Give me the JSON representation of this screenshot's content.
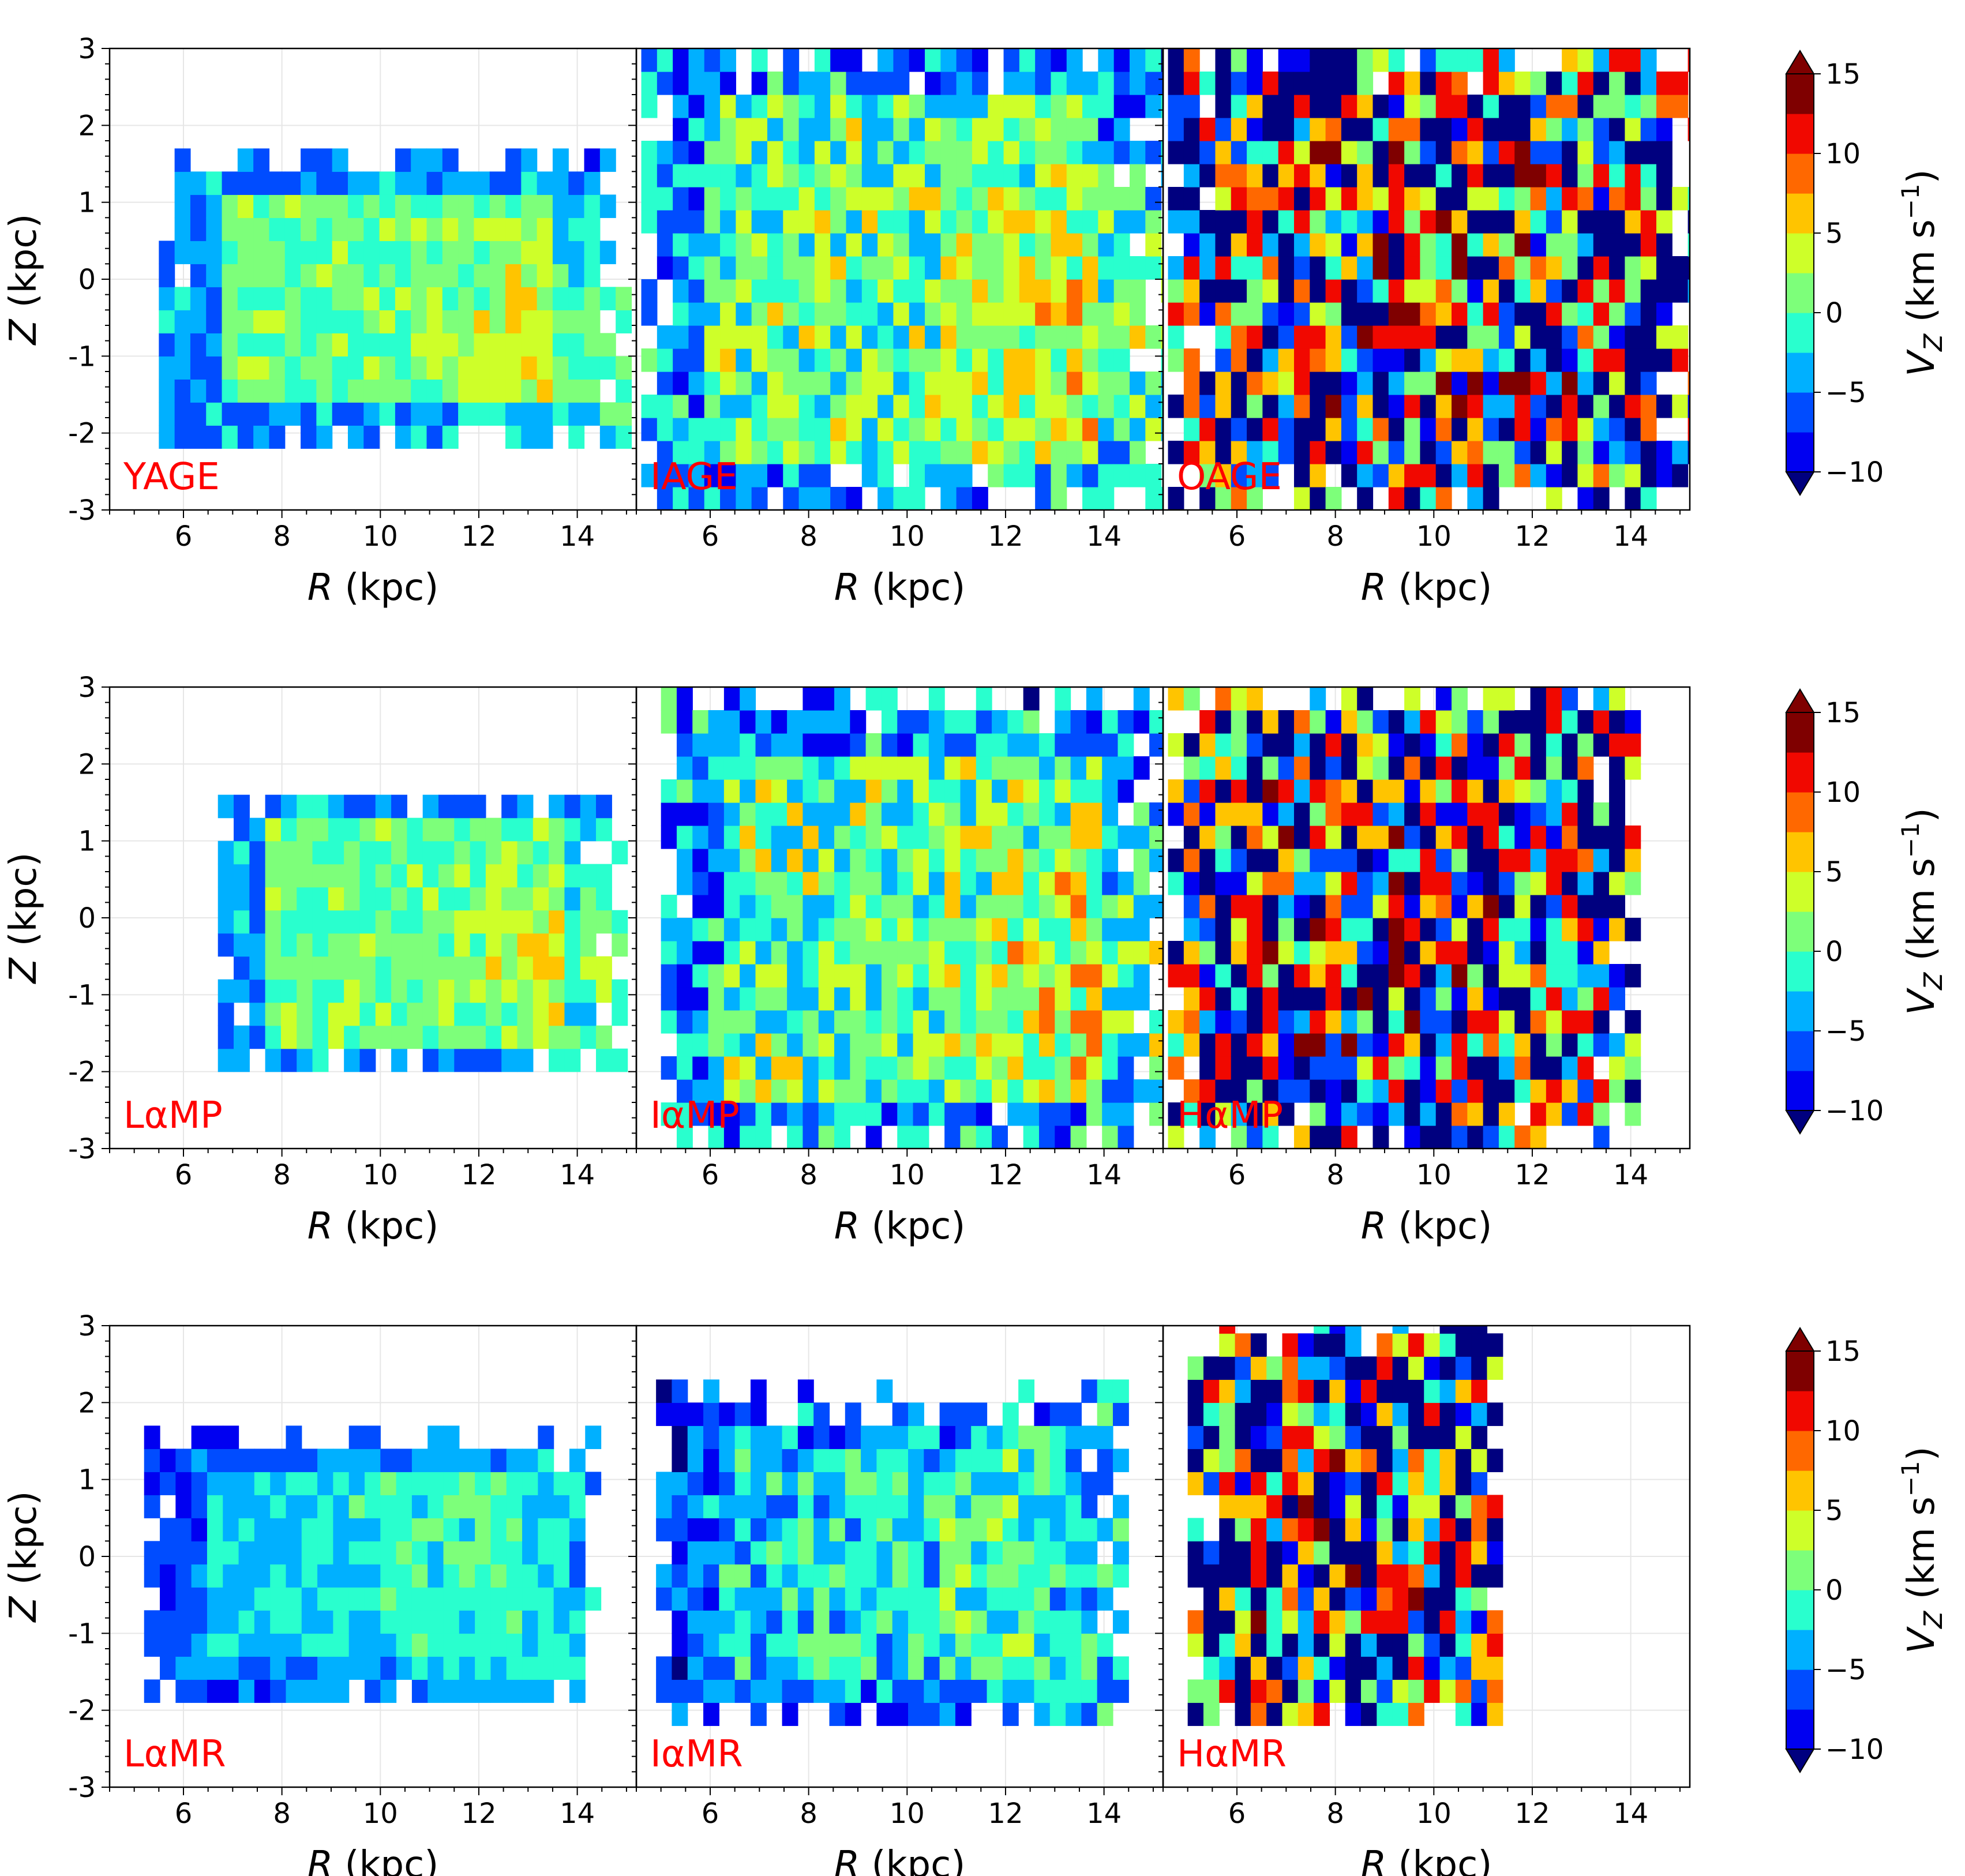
{
  "figure": {
    "colormap": "jet",
    "colorbar": {
      "label_text": "V",
      "label_subscript": "Z",
      "label_units": "(km s",
      "label_units_exp": "−1",
      "label_close": ")",
      "ticks": [
        "15",
        "10",
        "5",
        "0",
        "−5",
        "−10"
      ],
      "range": [
        -10,
        15
      ],
      "levels": 10,
      "extend": "both",
      "colors": [
        "#00007f",
        "#0000f1",
        "#004cff",
        "#00b0ff",
        "#29ffce",
        "#7dff7a",
        "#ceff29",
        "#ffc400",
        "#ff6800",
        "#f10800",
        "#7f0000"
      ]
    },
    "rows": [
      {
        "panels": [
          {
            "label": "YAGE",
            "label_color": "#ff0000"
          },
          {
            "label": "IAGE",
            "label_color": "#ff0000"
          },
          {
            "label": "OAGE",
            "label_color": "#ff0000"
          }
        ]
      },
      {
        "panels": [
          {
            "label": "LαMP",
            "label_color": "#ff0000"
          },
          {
            "label": "IαMP",
            "label_color": "#ff0000"
          },
          {
            "label": "HαMP",
            "label_color": "#ff0000"
          }
        ]
      },
      {
        "panels": [
          {
            "label": "LαMR",
            "label_color": "#ff0000"
          },
          {
            "label": "IαMR",
            "label_color": "#ff0000"
          },
          {
            "label": "HαMR",
            "label_color": "#ff0000"
          }
        ]
      }
    ]
  },
  "chart_data": {
    "type": "heatmap",
    "title": "",
    "xlabel_var": "R",
    "xlabel_units": "(kpc)",
    "ylabel_var": "Z",
    "ylabel_units": "(kpc)",
    "xlim": [
      4.5,
      15.2
    ],
    "ylim": [
      -3,
      3
    ],
    "xticks": [
      "6",
      "8",
      "10",
      "12",
      "14"
    ],
    "yticks": [
      "3",
      "2",
      "1",
      "0",
      "-1",
      "-2",
      "-3"
    ],
    "zlabel": "V_Z (km s^-1)",
    "zlim": [
      -10,
      15
    ],
    "grid": true,
    "panels": [
      {
        "name": "YAGE",
        "r_range": [
          5.5,
          14.8
        ],
        "z_range": [
          -2.2,
          1.6
        ],
        "pattern": "gradient_positive_outer",
        "noise": 0.35
      },
      {
        "name": "IAGE",
        "r_range": [
          4.6,
          15.2
        ],
        "z_range": [
          -3.0,
          3.0
        ],
        "pattern": "gradient_positive_outer",
        "noise": 0.6
      },
      {
        "name": "OAGE",
        "r_range": [
          4.6,
          15.2
        ],
        "z_range": [
          -3.0,
          3.0
        ],
        "pattern": "noisy",
        "noise": 1.0
      },
      {
        "name": "LαMP",
        "r_range": [
          6.7,
          14.8
        ],
        "z_range": [
          -2.0,
          1.6
        ],
        "pattern": "gradient_positive_outer",
        "noise": 0.35
      },
      {
        "name": "IαMP",
        "r_range": [
          5.0,
          15.2
        ],
        "z_range": [
          -3.0,
          2.8
        ],
        "pattern": "gradient_positive_outer",
        "noise": 0.65
      },
      {
        "name": "HαMP",
        "r_range": [
          4.6,
          14.0
        ],
        "z_range": [
          -3.0,
          3.0
        ],
        "pattern": "noisy",
        "noise": 1.0
      },
      {
        "name": "LαMR",
        "r_range": [
          5.2,
          14.2
        ],
        "z_range": [
          -1.9,
          1.5
        ],
        "pattern": "flat_negative",
        "noise": 0.3
      },
      {
        "name": "IαMR",
        "r_range": [
          4.9,
          14.4
        ],
        "z_range": [
          -2.2,
          2.0
        ],
        "pattern": "flat_negative",
        "noise": 0.6
      },
      {
        "name": "HαMR",
        "r_range": [
          5.0,
          11.4
        ],
        "z_range": [
          -2.2,
          3.0
        ],
        "pattern": "noisy",
        "noise": 1.0
      }
    ]
  }
}
